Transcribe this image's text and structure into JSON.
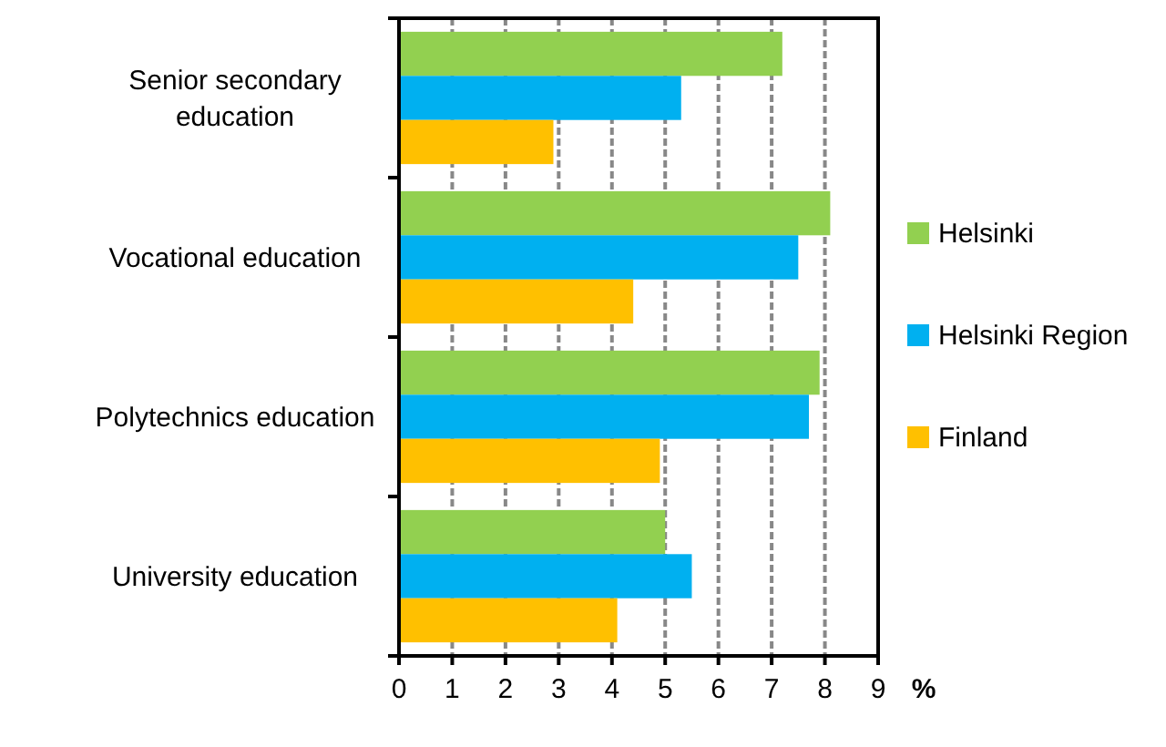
{
  "chart_data": {
    "type": "bar",
    "orientation": "horizontal",
    "xlabel": "%",
    "categories": [
      "Senior secondary education",
      "Vocational education",
      "Polytechnics education",
      "University education"
    ],
    "series": [
      {
        "name": "Helsinki",
        "color": "#92d050",
        "values": [
          7.2,
          8.1,
          7.9,
          5.0
        ]
      },
      {
        "name": "Helsinki Region",
        "color": "#00b0f0",
        "values": [
          5.3,
          7.5,
          7.7,
          5.5
        ]
      },
      {
        "name": "Finland",
        "color": "#ffc000",
        "values": [
          2.9,
          4.4,
          4.9,
          4.1
        ]
      }
    ],
    "xlim": [
      0,
      9
    ],
    "xticks": [
      0,
      1,
      2,
      3,
      4,
      5,
      6,
      7,
      8,
      9
    ],
    "grid": "x",
    "legend": "right"
  }
}
